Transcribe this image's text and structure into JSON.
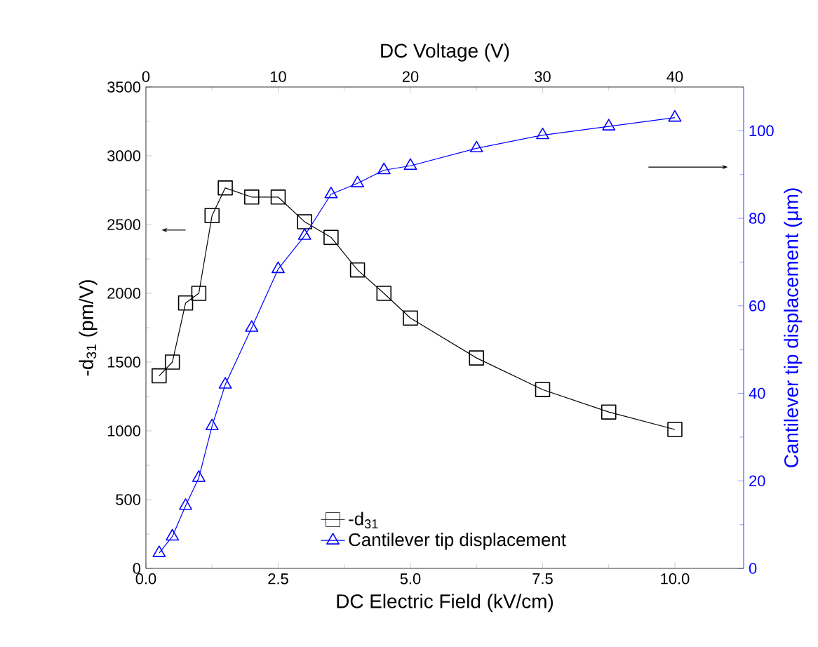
{
  "chart_data": {
    "type": "line",
    "xlabel": "DC Electric Field (kV/cm)",
    "x2label": "DC Voltage (V)",
    "ylabel": "-d$_{31}$ (pm/V)",
    "y2label": "Cantilever tip displacement (μm)",
    "xlim": [
      0,
      11.3
    ],
    "xticks": [
      {
        "value": 0,
        "label": "0.0"
      },
      2.5,
      {
        "value": 5,
        "label": "5.0"
      },
      7.5,
      {
        "value": 10,
        "label": "10.0"
      }
    ],
    "x2lim": [
      0,
      45.2
    ],
    "x2ticks": [
      0,
      10,
      20,
      30,
      40
    ],
    "ylim": [
      0,
      3500
    ],
    "yticks": [
      0,
      500,
      1000,
      1500,
      2000,
      2500,
      3000,
      3500
    ],
    "y2lim": [
      0,
      110
    ],
    "y2ticks": [
      0,
      20,
      40,
      60,
      80,
      100
    ],
    "legend": "bottom",
    "grid": false,
    "series": [
      {
        "name": "-d$_{31}$",
        "color": "#000000",
        "marker": "square",
        "x": [
          0.25,
          0.5,
          0.75,
          1.0,
          1.25,
          1.5,
          2.0,
          2.5,
          3.0,
          3.5,
          4.0,
          4.5,
          5.0,
          6.25,
          7.5,
          8.75,
          10.0
        ],
        "values": [
          1400,
          1500,
          1930,
          2000,
          2565,
          2766,
          2700,
          2700,
          2520,
          2407,
          2170,
          2000,
          1820,
          1530,
          1300,
          1137,
          1010
        ]
      },
      {
        "name": "Cantilever tip displacement",
        "color": "#0000ff",
        "marker": "triangle",
        "axis": "y2",
        "x": [
          0.25,
          0.5,
          0.75,
          1.0,
          1.25,
          1.5,
          2.0,
          2.5,
          3.0,
          3.5,
          4.0,
          4.5,
          5.0,
          6.25,
          7.5,
          8.75,
          10.0
        ],
        "values": [
          3.5,
          7.3,
          14.3,
          20.7,
          32.5,
          42,
          55,
          68.4,
          76,
          85.5,
          88,
          91,
          92,
          96,
          99,
          101,
          103
        ]
      }
    ]
  }
}
